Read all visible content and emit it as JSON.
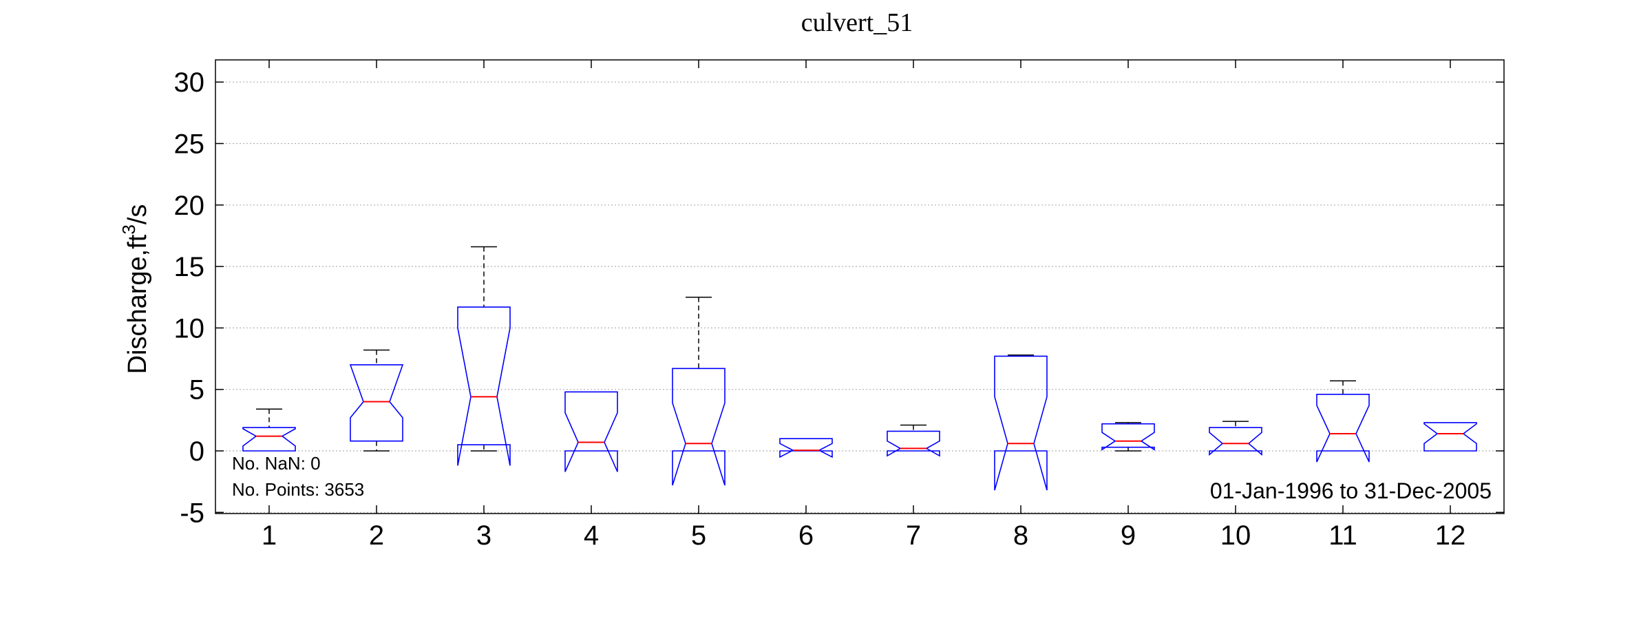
{
  "chart_data": {
    "type": "boxplot",
    "title": "culvert_51",
    "ylabel": "Discharge,ft",
    "ylabel_sup": "3",
    "ylabel_tail": "/s",
    "ylim": [
      -5,
      31
    ],
    "yticks": [
      -5,
      0,
      5,
      10,
      15,
      20,
      25,
      30
    ],
    "categories": [
      "1",
      "2",
      "3",
      "4",
      "5",
      "6",
      "7",
      "8",
      "9",
      "10",
      "11",
      "12"
    ],
    "grid": true,
    "boxes": [
      {
        "month": "1",
        "whisker_low": 0,
        "q1": 0,
        "notch_low": 0.4,
        "median": 1.2,
        "notch_high": 1.8,
        "q3": 1.9,
        "whisker_high": 3.4
      },
      {
        "month": "2",
        "whisker_low": 0,
        "q1": 0.8,
        "notch_low": 2.7,
        "median": 4.0,
        "notch_high": 7.0,
        "q3": 7.0,
        "whisker_high": 8.2
      },
      {
        "month": "3",
        "whisker_low": 0,
        "q1": 0.5,
        "notch_low": -1.2,
        "median": 4.4,
        "notch_high": 10.0,
        "q3": 11.7,
        "whisker_high": 16.6
      },
      {
        "month": "4",
        "whisker_low": 0,
        "q1": 0,
        "notch_low": -1.7,
        "median": 0.7,
        "notch_high": 3.1,
        "q3": 4.8,
        "whisker_high": 4.8
      },
      {
        "month": "5",
        "whisker_low": 0,
        "q1": 0,
        "notch_low": -2.8,
        "median": 0.6,
        "notch_high": 3.9,
        "q3": 6.7,
        "whisker_high": 12.5
      },
      {
        "month": "6",
        "whisker_low": 0,
        "q1": 0,
        "notch_low": -0.5,
        "median": 0.05,
        "notch_high": 0.6,
        "q3": 1.0,
        "whisker_high": 1.0
      },
      {
        "month": "7",
        "whisker_low": 0,
        "q1": 0,
        "notch_low": -0.4,
        "median": 0.2,
        "notch_high": 0.8,
        "q3": 1.6,
        "whisker_high": 2.1
      },
      {
        "month": "8",
        "whisker_low": 0,
        "q1": 0,
        "notch_low": -3.2,
        "median": 0.6,
        "notch_high": 4.4,
        "q3": 7.7,
        "whisker_high": 7.8
      },
      {
        "month": "9",
        "whisker_low": 0,
        "q1": 0.3,
        "notch_low": 0.1,
        "median": 0.8,
        "notch_high": 1.5,
        "q3": 2.2,
        "whisker_high": 2.3
      },
      {
        "month": "10",
        "whisker_low": 0,
        "q1": 0,
        "notch_low": -0.3,
        "median": 0.6,
        "notch_high": 1.5,
        "q3": 1.9,
        "whisker_high": 2.4
      },
      {
        "month": "11",
        "whisker_low": 0,
        "q1": 0,
        "notch_low": -0.9,
        "median": 1.4,
        "notch_high": 3.7,
        "q3": 4.6,
        "whisker_high": 5.7
      },
      {
        "month": "12",
        "whisker_low": 0,
        "q1": 0,
        "notch_low": 0.6,
        "median": 1.4,
        "notch_high": 2.2,
        "q3": 2.3,
        "whisker_high": 2.3
      }
    ],
    "annotations": {
      "nan_count": "No. NaN: 0",
      "points_count": "No. Points: 3653",
      "date_range": "01-Jan-1996 to 31-Dec-2005"
    },
    "colors": {
      "box": "#0000ff",
      "median": "#ff0000",
      "whisker": "#000000",
      "grid": "#b0b0b0",
      "axes": "#000000"
    }
  }
}
